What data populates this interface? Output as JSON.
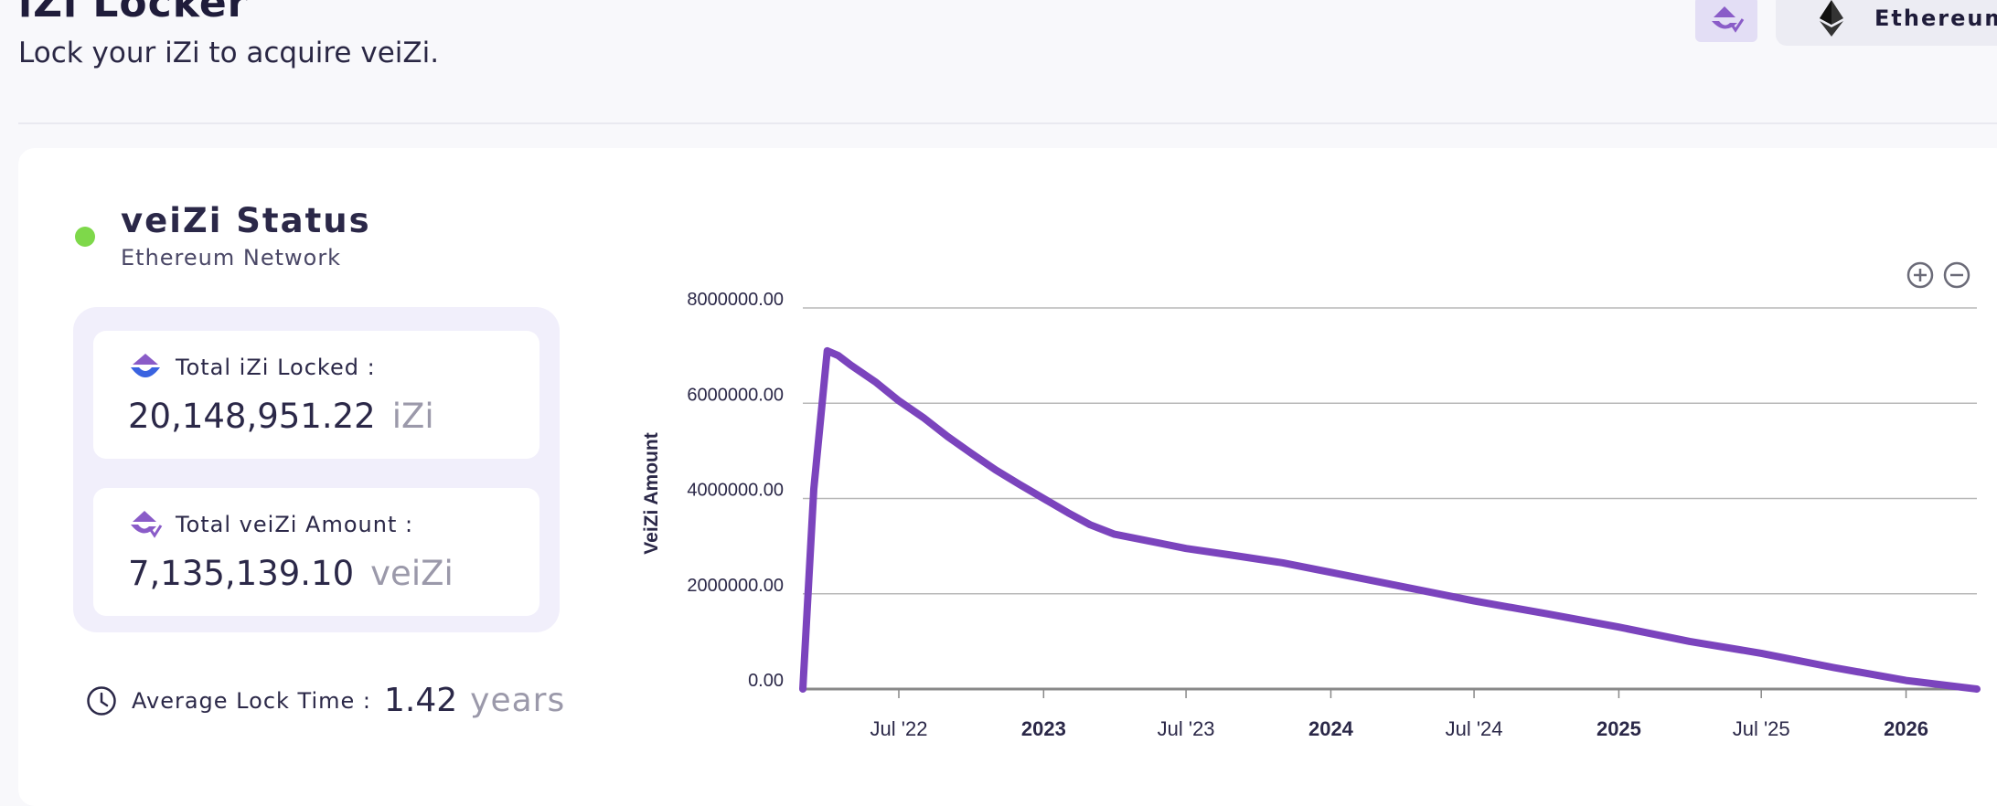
{
  "header": {
    "title": "iZi Locker",
    "subtitle": "Lock your iZi to acquire veiZi.",
    "network_label": "Ethereum"
  },
  "status": {
    "title": "veiZi Status",
    "network": "Ethereum Network",
    "total_locked_label": "Total iZi Locked :",
    "total_locked_value": "20,148,951.22",
    "total_locked_unit": "iZi",
    "total_veizi_label": "Total veiZi Amount :",
    "total_veizi_value": "7,135,139.10",
    "total_veizi_unit": "veiZi",
    "avg_lock_label": "Average Lock Time :",
    "avg_lock_value": "1.42",
    "avg_lock_unit": "years"
  },
  "colors": {
    "accent": "#7b44bd",
    "status_dot": "#7ed84a"
  },
  "icons": {
    "zoom_in": "plus-circle-icon",
    "zoom_out": "minus-circle-icon",
    "clock": "clock-icon",
    "izi": "izi-logo-icon",
    "veizi": "veizi-logo-icon",
    "eth": "ethereum-icon"
  },
  "chart_data": {
    "type": "line",
    "ylabel": "VeiZi Amount",
    "ylim": [
      0,
      8000000
    ],
    "yticks": [
      0,
      2000000,
      4000000,
      6000000,
      8000000
    ],
    "ytick_labels": [
      "0.00",
      "2000000.00",
      "4000000.00",
      "6000000.00",
      "8000000.00"
    ],
    "xlim": [
      "2022-03-01",
      "2026-04-01"
    ],
    "xticks": [
      "2022-07-01",
      "2023-01-01",
      "2023-07-01",
      "2024-01-01",
      "2024-07-01",
      "2025-01-01",
      "2025-07-01",
      "2026-01-01"
    ],
    "xtick_labels": [
      "Jul '22",
      "2023",
      "Jul '23",
      "2024",
      "Jul '24",
      "2025",
      "Jul '25",
      "2026"
    ],
    "bold_xticks": [
      "2023",
      "2024",
      "2025",
      "2026"
    ],
    "grid": true,
    "series": [
      {
        "x": [
          "2022-03-01",
          "2022-03-15",
          "2022-04-01",
          "2022-04-15",
          "2022-05-01",
          "2022-06-01",
          "2022-07-01",
          "2022-08-01",
          "2022-09-01",
          "2022-10-01",
          "2022-11-01",
          "2022-12-01",
          "2023-01-01",
          "2023-02-01",
          "2023-03-01",
          "2023-04-01",
          "2023-06-01",
          "2023-07-01",
          "2023-09-01",
          "2023-11-01",
          "2024-01-01",
          "2024-04-01",
          "2024-07-01",
          "2024-10-01",
          "2025-01-01",
          "2025-04-01",
          "2025-07-01",
          "2025-10-01",
          "2026-01-01",
          "2026-04-01"
        ],
        "y": [
          0,
          4200000,
          7100000,
          7000000,
          6800000,
          6450000,
          6050000,
          5700000,
          5300000,
          4950000,
          4600000,
          4300000,
          4000000,
          3700000,
          3450000,
          3250000,
          3050000,
          2950000,
          2800000,
          2650000,
          2450000,
          2150000,
          1850000,
          1580000,
          1300000,
          1000000,
          750000,
          450000,
          180000,
          0
        ]
      }
    ]
  }
}
